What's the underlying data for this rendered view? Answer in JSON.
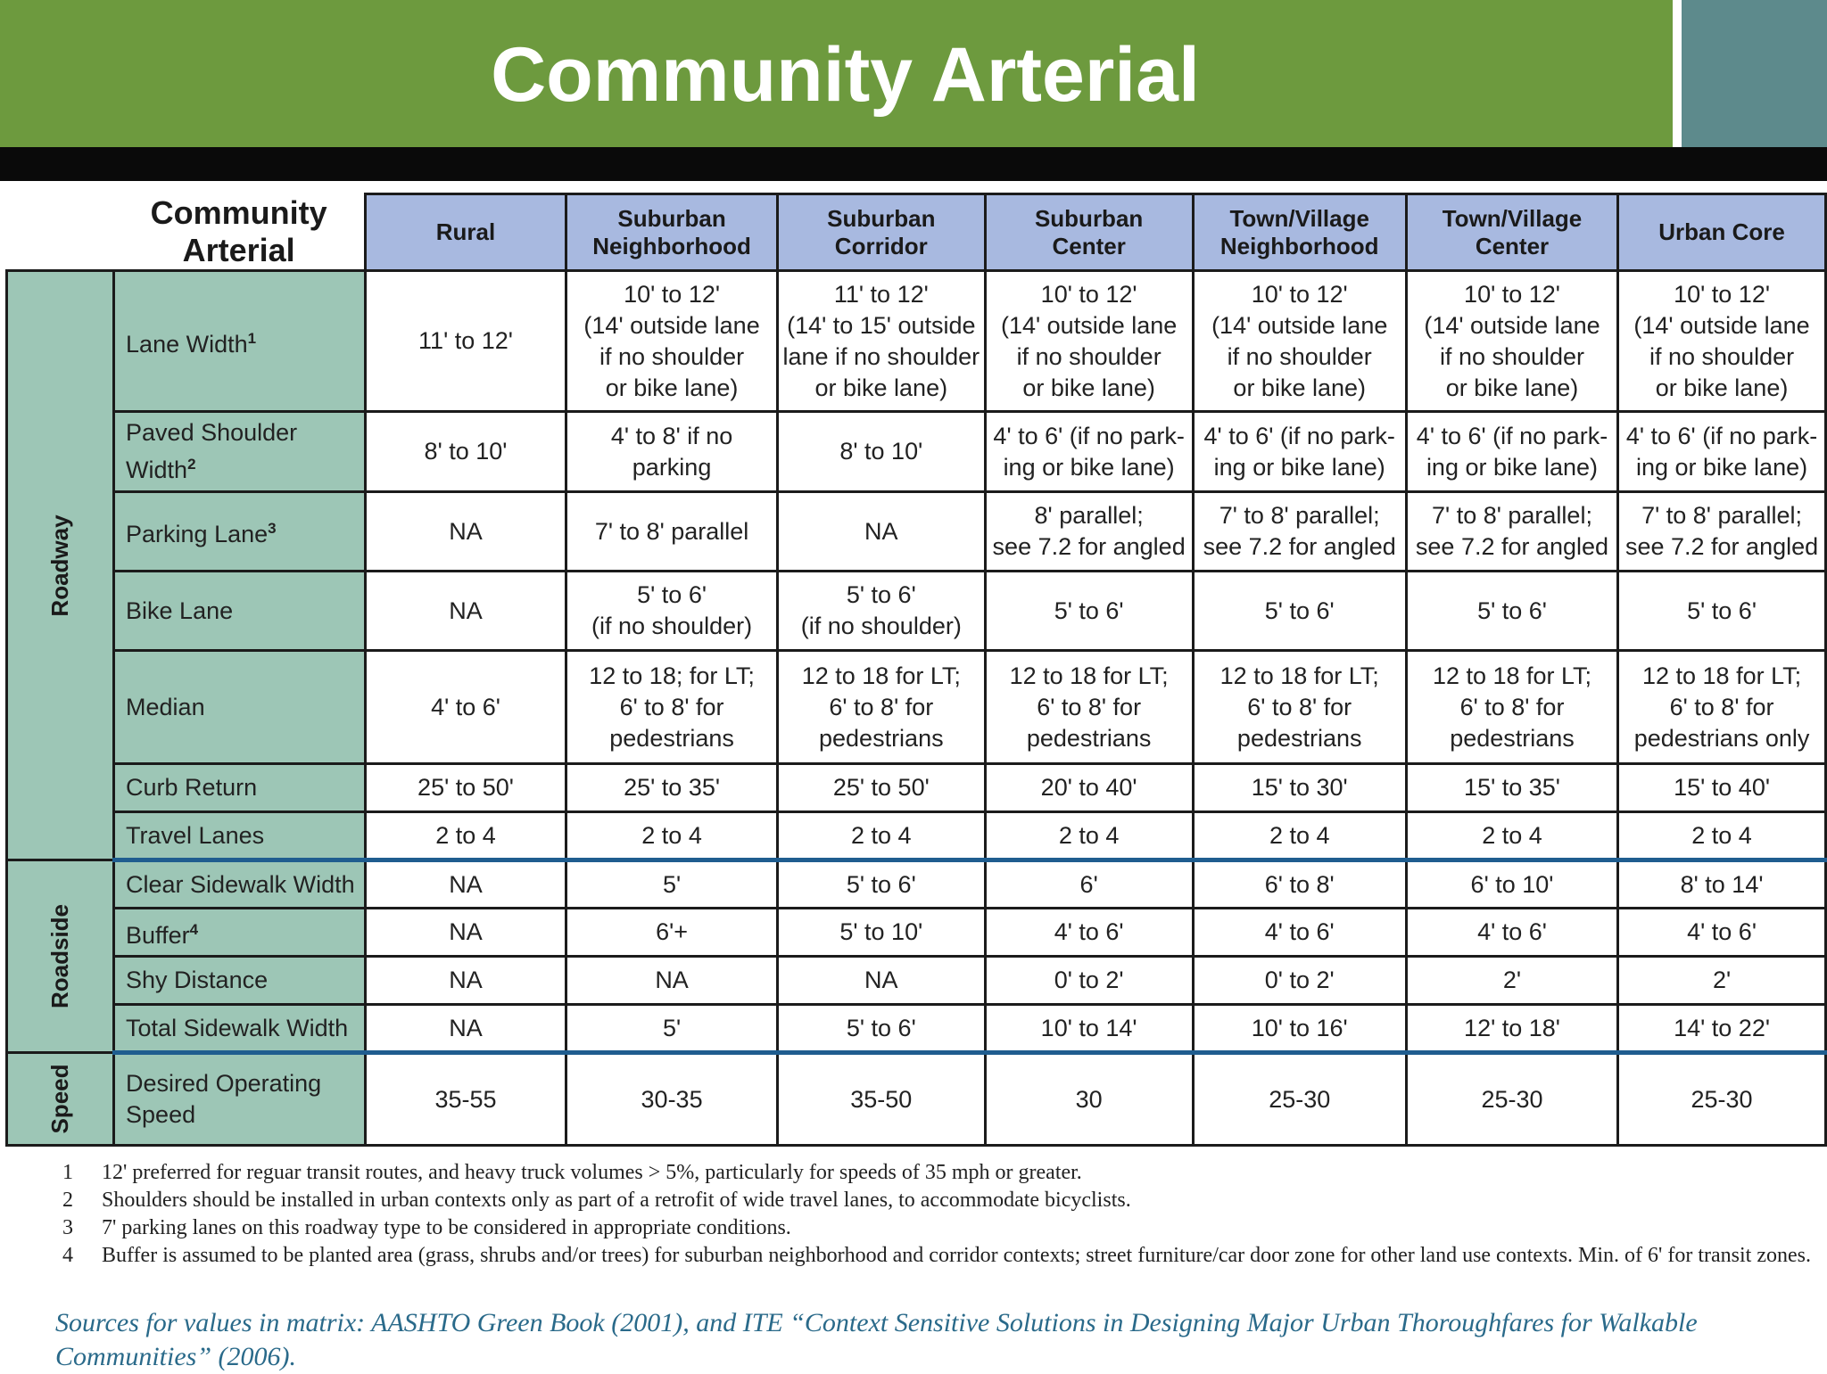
{
  "title": "Community Arterial",
  "table": {
    "corner_title": "Community\nArterial",
    "columns": [
      "Rural",
      "Suburban\nNeighborhood",
      "Suburban\nCorridor",
      "Suburban\nCenter",
      "Town/Village\nNeighborhood",
      "Town/Village\nCenter",
      "Urban Core"
    ],
    "groups": [
      {
        "name": "Roadway",
        "rows": [
          {
            "label": "Lane Width",
            "sup": "1",
            "cells": [
              "11' to 12'",
              "10' to 12'\n(14' outside lane\nif no shoulder\nor bike lane)",
              "11' to 12'\n(14' to 15' outside\nlane if no shoulder\nor bike lane)",
              "10' to 12'\n(14' outside lane\nif no shoulder\nor bike lane)",
              "10' to 12'\n(14' outside lane\nif no shoulder\nor bike lane)",
              "10' to 12'\n(14' outside lane\nif no shoulder\nor bike lane)",
              "10' to 12'\n(14' outside lane\nif no shoulder\nor bike lane)"
            ]
          },
          {
            "label": "Paved Shoulder\nWidth",
            "sup": "2",
            "cells": [
              "8' to 10'",
              "4' to 8' if no\nparking",
              "8' to 10'",
              "4' to 6' (if no park-\ning or bike lane)",
              "4' to 6' (if no park-\ning or bike lane)",
              "4' to 6' (if no park-\ning or bike lane)",
              "4' to 6' (if no park-\ning or bike lane)"
            ]
          },
          {
            "label": "Parking Lane",
            "sup": "3",
            "cells": [
              "NA",
              "7' to 8' parallel",
              "NA",
              "8' parallel;\nsee 7.2 for angled",
              "7' to 8' parallel;\nsee 7.2 for angled",
              "7' to 8' parallel;\nsee 7.2 for angled",
              "7' to 8' parallel;\nsee 7.2 for angled"
            ]
          },
          {
            "label": "Bike Lane",
            "sup": "",
            "cells": [
              "NA",
              "5' to 6'\n(if no shoulder)",
              "5' to 6'\n(if no shoulder)",
              "5' to 6'",
              "5' to 6'",
              "5' to 6'",
              "5' to 6'"
            ]
          },
          {
            "label": "Median",
            "sup": "",
            "cells": [
              "4' to 6'",
              "12 to 18; for LT;\n6' to 8' for\npedestrians",
              "12 to 18 for LT;\n6' to 8' for\npedestrians",
              "12 to 18 for LT;\n6' to 8' for\npedestrians",
              "12 to 18 for LT;\n6' to 8' for\npedestrians",
              "12 to 18 for LT;\n6' to 8' for\npedestrians",
              "12 to 18 for LT;\n6' to 8' for\npedestrians only"
            ]
          },
          {
            "label": "Curb Return",
            "sup": "",
            "cells": [
              "25' to 50'",
              "25' to 35'",
              "25' to 50'",
              "20' to 40'",
              "15' to 30'",
              "15' to 35'",
              "15' to 40'"
            ]
          },
          {
            "label": "Travel Lanes",
            "sup": "",
            "cells": [
              "2 to 4",
              "2 to 4",
              "2 to 4",
              "2 to 4",
              "2 to 4",
              "2 to 4",
              "2 to 4"
            ]
          }
        ]
      },
      {
        "name": "Roadside",
        "rows": [
          {
            "label": "Clear Sidewalk Width",
            "sup": "",
            "cells": [
              "NA",
              "5'",
              "5' to 6'",
              "6'",
              "6' to 8'",
              "6' to 10'",
              "8' to 14'"
            ]
          },
          {
            "label": "Buffer",
            "sup": "4",
            "cells": [
              "NA",
              "6'+",
              "5' to 10'",
              "4' to 6'",
              "4' to 6'",
              "4' to 6'",
              "4' to 6'"
            ]
          },
          {
            "label": "Shy Distance",
            "sup": "",
            "cells": [
              "NA",
              "NA",
              "NA",
              "0' to 2'",
              "0' to 2'",
              "2'",
              "2'"
            ]
          },
          {
            "label": "Total Sidewalk Width",
            "sup": "",
            "cells": [
              "NA",
              "5'",
              "5' to 6'",
              "10' to 14'",
              "10' to 16'",
              "12' to 18'",
              "14' to 22'"
            ]
          }
        ]
      },
      {
        "name": "Speed",
        "rows": [
          {
            "label": "Desired Operating\nSpeed",
            "sup": "",
            "cells": [
              "35-55",
              "30-35",
              "35-50",
              "30",
              "25-30",
              "25-30",
              "25-30"
            ]
          }
        ]
      }
    ]
  },
  "footnotes": [
    {
      "num": "1",
      "text": "12' preferred for reguar transit routes, and heavy truck volumes > 5%, particularly for speeds of 35 mph or greater."
    },
    {
      "num": "2",
      "text": "Shoulders should be installed in urban contexts only as part of a retrofit of wide travel lanes, to accommodate bicyclists."
    },
    {
      "num": "3",
      "text": "7' parking lanes on this roadway type to be considered in appropriate conditions."
    },
    {
      "num": "4",
      "text": "Buffer is assumed to be planted area (grass, shrubs and/or trees) for suburban neighborhood and corridor contexts; street furniture/car door zone for other land use contexts.  Min. of 6' for transit zones."
    }
  ],
  "sources": "Sources for values in matrix: AASHTO Green Book (2001), and ITE “Context Sensitive Solutions in Designing Major Urban Thoroughfares for Walkable Communities” (2006).",
  "colors": {
    "header_green": "#6d9a3e",
    "corner_teal": "#5d8a8c",
    "column_header": "#a8b9e0",
    "row_label": "#9dc6b6",
    "section_line": "#1f5d8f",
    "sources_text": "#2a6a8a"
  }
}
